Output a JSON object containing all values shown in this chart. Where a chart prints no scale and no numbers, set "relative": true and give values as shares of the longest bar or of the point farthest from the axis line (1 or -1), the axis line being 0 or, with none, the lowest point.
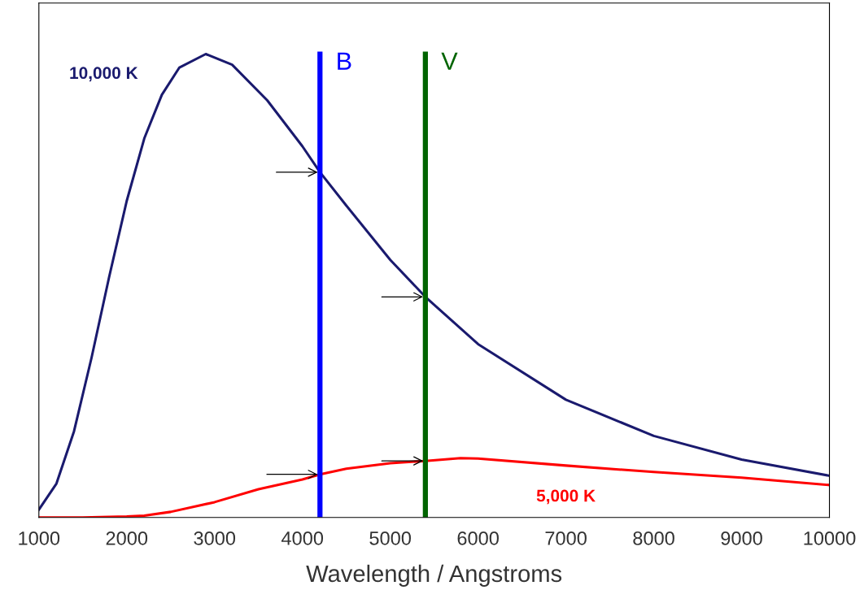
{
  "chart_data": {
    "type": "line",
    "relative": true,
    "xlabel": "Wavelength / Angstroms",
    "xlim": [
      1000,
      10000
    ],
    "xticks": [
      1000,
      2000,
      3000,
      4000,
      5000,
      6000,
      7000,
      8000,
      9000,
      10000
    ],
    "grid": false,
    "legend": false,
    "marker": "none",
    "line_style": "solid",
    "series": [
      {
        "name": "10,000 K",
        "color": "#1a1a6e",
        "x": [
          1000,
          1200,
          1400,
          1600,
          1800,
          2000,
          2200,
          2400,
          2600,
          2900,
          3200,
          3600,
          4000,
          4200,
          4500,
          5000,
          5400,
          6000,
          7000,
          8000,
          9000,
          10000
        ],
        "values": [
          0.017,
          0.073,
          0.186,
          0.345,
          0.519,
          0.683,
          0.818,
          0.912,
          0.971,
          1.0,
          0.977,
          0.9,
          0.801,
          0.745,
          0.673,
          0.556,
          0.476,
          0.374,
          0.254,
          0.176,
          0.125,
          0.09
        ]
      },
      {
        "name": "5,000 K",
        "color": "#ff0000",
        "x": [
          1000,
          1500,
          2000,
          2200,
          2500,
          3000,
          3500,
          4000,
          4200,
          4500,
          5000,
          5400,
          5800,
          6000,
          7000,
          8000,
          9000,
          10000
        ],
        "values": [
          0.0,
          0.0,
          0.002,
          0.004,
          0.012,
          0.033,
          0.061,
          0.082,
          0.093,
          0.105,
          0.117,
          0.122,
          0.128,
          0.127,
          0.112,
          0.098,
          0.086,
          0.07
        ]
      }
    ],
    "ref_lines": [
      {
        "axis": "x",
        "value": 4200,
        "label": "B",
        "color": "#0000ff"
      },
      {
        "axis": "x",
        "value": 5400,
        "label": "V",
        "color": "#006400"
      }
    ]
  }
}
